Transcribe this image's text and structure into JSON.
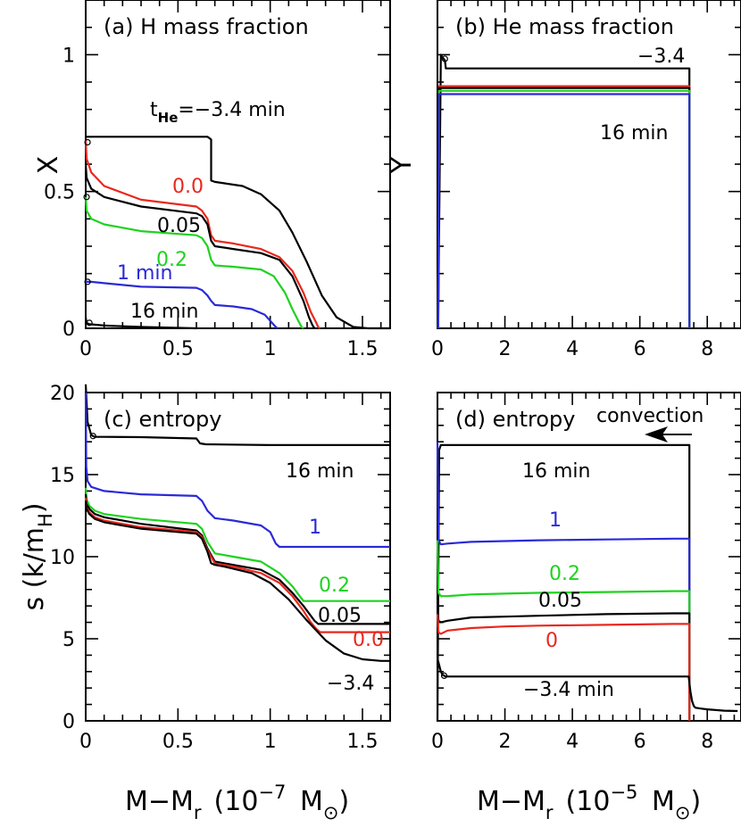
{
  "colors": {
    "black": "#000000",
    "red": "#e8281e",
    "green": "#1fd21f",
    "blue": "#2a2ad8"
  },
  "shared_xlabels": {
    "left": {
      "main": "M−M",
      "sub": "r",
      "unit_open": "(10",
      "exp": "−7",
      "mass": " M",
      "sun": "⊙",
      "close": ")"
    },
    "right": {
      "main": "M−M",
      "sub": "r",
      "unit_open": "(10",
      "exp": "−5",
      "mass": " M",
      "sun": "⊙",
      "close": ")"
    }
  },
  "chart_data": [
    {
      "id": "a",
      "type": "line",
      "title": "(a) H mass fraction",
      "ylabel": "X",
      "xlim": [
        0,
        1.65
      ],
      "ylim": [
        0,
        1.2
      ],
      "xticks": [
        0,
        0.5,
        1,
        1.5
      ],
      "xticklabels": [
        "0",
        "0.5",
        "1",
        "1.5"
      ],
      "yticks": [
        0,
        0.5,
        1
      ],
      "yticklabels": [
        "0",
        "0.5",
        "1"
      ],
      "grid": false,
      "annotations": [
        {
          "text": "t",
          "sub": "He",
          "rest": "=−3.4 min",
          "color": "black"
        },
        {
          "text": "0.0",
          "color": "red"
        },
        {
          "text": "0.05",
          "color": "black"
        },
        {
          "text": "0.2",
          "color": "green"
        },
        {
          "text": "1 min",
          "color": "blue"
        },
        {
          "text": "16 min",
          "color": "black"
        }
      ],
      "series": [
        {
          "color": "black",
          "x": [
            0,
            0.66,
            0.68,
            0.68,
            0.7,
            0.85,
            0.95,
            1.05,
            1.12,
            1.2,
            1.28,
            1.36,
            1.45,
            1.53,
            1.65
          ],
          "y": [
            0.7,
            0.7,
            0.69,
            0.54,
            0.535,
            0.52,
            0.49,
            0.43,
            0.35,
            0.24,
            0.12,
            0.04,
            0.005,
            0,
            0
          ]
        },
        {
          "color": "red",
          "x": [
            0,
            0.005,
            0.03,
            0.1,
            0.3,
            0.6,
            0.63,
            0.66,
            0.68,
            0.7,
            0.8,
            0.95,
            1.05,
            1.12,
            1.18,
            1.22,
            1.25,
            1.26,
            1.27
          ],
          "y": [
            0.69,
            0.62,
            0.57,
            0.52,
            0.47,
            0.445,
            0.43,
            0.4,
            0.34,
            0.32,
            0.31,
            0.29,
            0.26,
            0.21,
            0.13,
            0.06,
            0.02,
            0.005,
            0
          ]
        },
        {
          "color": "black",
          "x": [
            0,
            0.005,
            0.03,
            0.1,
            0.3,
            0.6,
            0.63,
            0.66,
            0.68,
            0.7,
            0.8,
            0.95,
            1.05,
            1.12,
            1.18,
            1.21,
            1.23,
            1.24
          ],
          "y": [
            0.6,
            0.55,
            0.51,
            0.48,
            0.445,
            0.42,
            0.41,
            0.38,
            0.32,
            0.3,
            0.29,
            0.275,
            0.25,
            0.19,
            0.1,
            0.04,
            0.01,
            0
          ]
        },
        {
          "color": "green",
          "x": [
            0,
            0.005,
            0.03,
            0.1,
            0.3,
            0.6,
            0.63,
            0.66,
            0.68,
            0.7,
            0.8,
            0.95,
            1.02,
            1.08,
            1.12,
            1.15,
            1.17,
            1.18
          ],
          "y": [
            0.48,
            0.43,
            0.4,
            0.38,
            0.355,
            0.34,
            0.33,
            0.3,
            0.25,
            0.23,
            0.225,
            0.215,
            0.19,
            0.13,
            0.07,
            0.03,
            0.005,
            0
          ]
        },
        {
          "color": "blue",
          "x": [
            0,
            0.005,
            0.03,
            0.1,
            0.3,
            0.6,
            0.63,
            0.66,
            0.68,
            0.7,
            0.8,
            0.9,
            0.97,
            1.01,
            1.03,
            1.04
          ],
          "y": [
            0.17,
            0.17,
            0.17,
            0.165,
            0.152,
            0.148,
            0.14,
            0.12,
            0.1,
            0.085,
            0.08,
            0.07,
            0.05,
            0.02,
            0.005,
            0
          ]
        },
        {
          "color": "black",
          "x": [
            0,
            0.005,
            0.02,
            0.1,
            0.3,
            0.6
          ],
          "y": [
            0.04,
            0.02,
            0.015,
            0.01,
            0.005,
            0
          ]
        }
      ],
      "markers": [
        {
          "x": 0.01,
          "y": 0.68
        },
        {
          "x": 0.01,
          "y": 0.17
        },
        {
          "x": 0.02,
          "y": 0.02
        },
        {
          "x": 0.005,
          "y": 0.48
        }
      ]
    },
    {
      "id": "b",
      "type": "line",
      "title": "(b) He mass fraction",
      "ylabel": "Y",
      "xlim": [
        0,
        9
      ],
      "ylim": [
        0,
        1.2
      ],
      "xticks": [
        0,
        2,
        4,
        6,
        8
      ],
      "xticklabels": [
        "0",
        "2",
        "4",
        "6",
        "8"
      ],
      "yticks": [
        0,
        0.5,
        1
      ],
      "yticklabels": [],
      "grid": false,
      "annotations": [
        {
          "text": "−3.4",
          "color": "black"
        },
        {
          "text": "16 min",
          "color": "black"
        }
      ],
      "series": [
        {
          "color": "black",
          "x": [
            0.02,
            0.1,
            0.15,
            0.22,
            0.25,
            0.3,
            7.47,
            7.47
          ],
          "y": [
            0.0,
            1.0,
            0.99,
            0.98,
            0.95,
            0.95,
            0.95,
            0
          ]
        },
        {
          "color": "red",
          "x": [
            0.02,
            0.05,
            7.47,
            7.47
          ],
          "y": [
            0,
            0.885,
            0.885,
            0
          ]
        },
        {
          "color": "black",
          "x": [
            0.02,
            0.05,
            7.47,
            7.47
          ],
          "y": [
            0,
            0.878,
            0.878,
            0
          ]
        },
        {
          "color": "green",
          "x": [
            0.02,
            0.05,
            7.47,
            7.47
          ],
          "y": [
            0,
            0.868,
            0.868,
            0
          ]
        },
        {
          "color": "blue",
          "x": [
            0.02,
            0.05,
            7.47,
            7.47
          ],
          "y": [
            0,
            0.856,
            0.856,
            0
          ]
        }
      ],
      "markers": [
        {
          "x": 0.22,
          "y": 0.985
        }
      ]
    },
    {
      "id": "c",
      "type": "line",
      "title": "(c) entropy",
      "ylabel": "s (k/m",
      "ylabel_sub": "H",
      "ylabel_close": ")",
      "xlim": [
        0,
        1.65
      ],
      "ylim": [
        0,
        20
      ],
      "xticks": [
        0,
        0.5,
        1,
        1.5
      ],
      "xticklabels": [
        "0",
        "0.5",
        "1",
        "1.5"
      ],
      "yticks": [
        0,
        5,
        10,
        15,
        20
      ],
      "yticklabels": [
        "0",
        "5",
        "10",
        "15",
        "20"
      ],
      "grid": false,
      "annotations": [
        {
          "text": "16 min",
          "color": "black"
        },
        {
          "text": "1",
          "color": "blue"
        },
        {
          "text": "0.2",
          "color": "green"
        },
        {
          "text": "0.05",
          "color": "black"
        },
        {
          "text": "0.0",
          "color": "red"
        },
        {
          "text": "−3.4",
          "color": "black"
        }
      ],
      "series": [
        {
          "color": "black",
          "x": [
            0,
            0.01,
            0.03,
            0.05,
            0.1,
            0.3,
            0.6,
            0.62,
            0.65,
            1.0,
            1.65
          ],
          "y": [
            20.5,
            18.2,
            17.4,
            17.3,
            17.3,
            17.28,
            17.2,
            16.9,
            16.85,
            16.8,
            16.8
          ]
        },
        {
          "color": "blue",
          "x": [
            0,
            0.003,
            0.01,
            0.03,
            0.1,
            0.3,
            0.6,
            0.63,
            0.66,
            0.7,
            0.8,
            0.95,
            1.0,
            1.03,
            1.05,
            1.65
          ],
          "y": [
            20,
            15.5,
            14.6,
            14.25,
            14.0,
            13.8,
            13.7,
            13.4,
            12.8,
            12.35,
            12.2,
            11.9,
            11.5,
            10.8,
            10.6,
            10.6
          ]
        },
        {
          "color": "green",
          "x": [
            0,
            0.005,
            0.02,
            0.05,
            0.1,
            0.3,
            0.6,
            0.63,
            0.66,
            0.7,
            0.8,
            0.95,
            1.05,
            1.12,
            1.16,
            1.18,
            1.2,
            1.65
          ],
          "y": [
            14.2,
            13.5,
            13.1,
            12.8,
            12.6,
            12.3,
            12.0,
            11.7,
            10.9,
            10.2,
            10.0,
            9.7,
            9.0,
            8.2,
            7.6,
            7.3,
            7.3,
            7.3
          ]
        },
        {
          "color": "black",
          "x": [
            0,
            0.005,
            0.02,
            0.05,
            0.1,
            0.3,
            0.6,
            0.63,
            0.66,
            0.7,
            0.8,
            0.95,
            1.05,
            1.12,
            1.18,
            1.22,
            1.24,
            1.26,
            1.65
          ],
          "y": [
            13.8,
            13.2,
            12.9,
            12.6,
            12.4,
            12.0,
            11.6,
            11.3,
            10.5,
            9.7,
            9.5,
            9.2,
            8.6,
            7.8,
            7.0,
            6.4,
            6.1,
            5.9,
            5.9
          ]
        },
        {
          "color": "red",
          "x": [
            0,
            0.005,
            0.02,
            0.05,
            0.1,
            0.3,
            0.6,
            0.63,
            0.66,
            0.7,
            0.8,
            0.95,
            1.05,
            1.12,
            1.18,
            1.22,
            1.25,
            1.27,
            1.65
          ],
          "y": [
            13.6,
            13.0,
            12.7,
            12.4,
            12.2,
            11.8,
            11.5,
            11.2,
            10.4,
            9.6,
            9.4,
            9.0,
            8.4,
            7.6,
            6.7,
            6.0,
            5.6,
            5.4,
            5.4
          ]
        },
        {
          "color": "black",
          "x": [
            0,
            0.005,
            0.02,
            0.05,
            0.1,
            0.3,
            0.6,
            0.63,
            0.66,
            0.68,
            0.7,
            0.75,
            0.9,
            1.0,
            1.1,
            1.2,
            1.3,
            1.4,
            1.5,
            1.6,
            1.65
          ],
          "y": [
            13.4,
            12.9,
            12.6,
            12.3,
            12.1,
            11.7,
            11.4,
            11.1,
            10.3,
            9.6,
            9.5,
            9.4,
            9.0,
            8.4,
            7.4,
            6.1,
            4.9,
            4.1,
            3.75,
            3.65,
            3.65
          ]
        }
      ],
      "markers": [
        {
          "x": 0.04,
          "y": 17.35
        }
      ]
    },
    {
      "id": "d",
      "type": "line",
      "title": "(d) entropy",
      "ylabel": "",
      "xlim": [
        0,
        9
      ],
      "ylim": [
        0,
        20
      ],
      "xticks": [
        0,
        2,
        4,
        6,
        8
      ],
      "xticklabels": [
        "0",
        "2",
        "4",
        "6",
        "8"
      ],
      "yticks": [
        0,
        5,
        10,
        15,
        20
      ],
      "yticklabels": [],
      "grid": false,
      "annotations": [
        {
          "text": "convection",
          "color": "black"
        },
        {
          "text": "16 min",
          "color": "black"
        },
        {
          "text": "1",
          "color": "blue"
        },
        {
          "text": "0.2",
          "color": "green"
        },
        {
          "text": "0.05",
          "color": "black"
        },
        {
          "text": "0",
          "color": "red"
        },
        {
          "text": "−3.4 min",
          "color": "black"
        }
      ],
      "series": [
        {
          "color": "black",
          "x": [
            0,
            0.05,
            0.1,
            7.47,
            7.47
          ],
          "y": [
            0,
            16.5,
            16.8,
            16.8,
            0.5
          ]
        },
        {
          "color": "blue",
          "x": [
            0,
            0.03,
            0.1,
            0.3,
            1,
            2,
            3,
            5,
            7,
            7.47,
            7.47
          ],
          "y": [
            17,
            11.0,
            10.75,
            10.8,
            10.9,
            10.95,
            11.0,
            11.05,
            11.1,
            11.1,
            0
          ]
        },
        {
          "color": "green",
          "x": [
            0,
            0.03,
            0.1,
            0.3,
            1,
            2,
            3,
            5,
            7,
            7.47,
            7.47
          ],
          "y": [
            11,
            7.8,
            7.6,
            7.6,
            7.7,
            7.75,
            7.8,
            7.85,
            7.9,
            7.9,
            0
          ]
        },
        {
          "color": "black",
          "x": [
            0,
            0.03,
            0.1,
            0.3,
            1,
            2,
            3,
            5,
            7,
            7.47,
            7.47
          ],
          "y": [
            7.5,
            6.1,
            6.0,
            6.1,
            6.3,
            6.35,
            6.4,
            6.5,
            6.55,
            6.55,
            0
          ]
        },
        {
          "color": "red",
          "x": [
            0,
            0.03,
            0.1,
            0.3,
            1,
            2,
            3,
            5,
            7,
            7.47,
            7.47
          ],
          "y": [
            6.5,
            5.4,
            5.3,
            5.5,
            5.65,
            5.75,
            5.8,
            5.85,
            5.9,
            5.9,
            0
          ]
        },
        {
          "color": "black",
          "x": [
            0,
            0.05,
            0.1,
            0.15,
            0.2,
            0.25,
            0.4,
            2,
            4,
            6,
            7.45,
            7.5,
            7.55,
            7.6,
            7.65,
            7.8,
            8,
            8.5,
            8.9
          ],
          "y": [
            3.8,
            3.4,
            3.0,
            2.8,
            2.75,
            2.7,
            2.7,
            2.7,
            2.7,
            2.7,
            2.7,
            1.8,
            1.2,
            0.9,
            0.8,
            0.75,
            0.7,
            0.62,
            0.6
          ]
        }
      ],
      "markers": [
        {
          "x": 0.2,
          "y": 2.75
        }
      ]
    }
  ]
}
